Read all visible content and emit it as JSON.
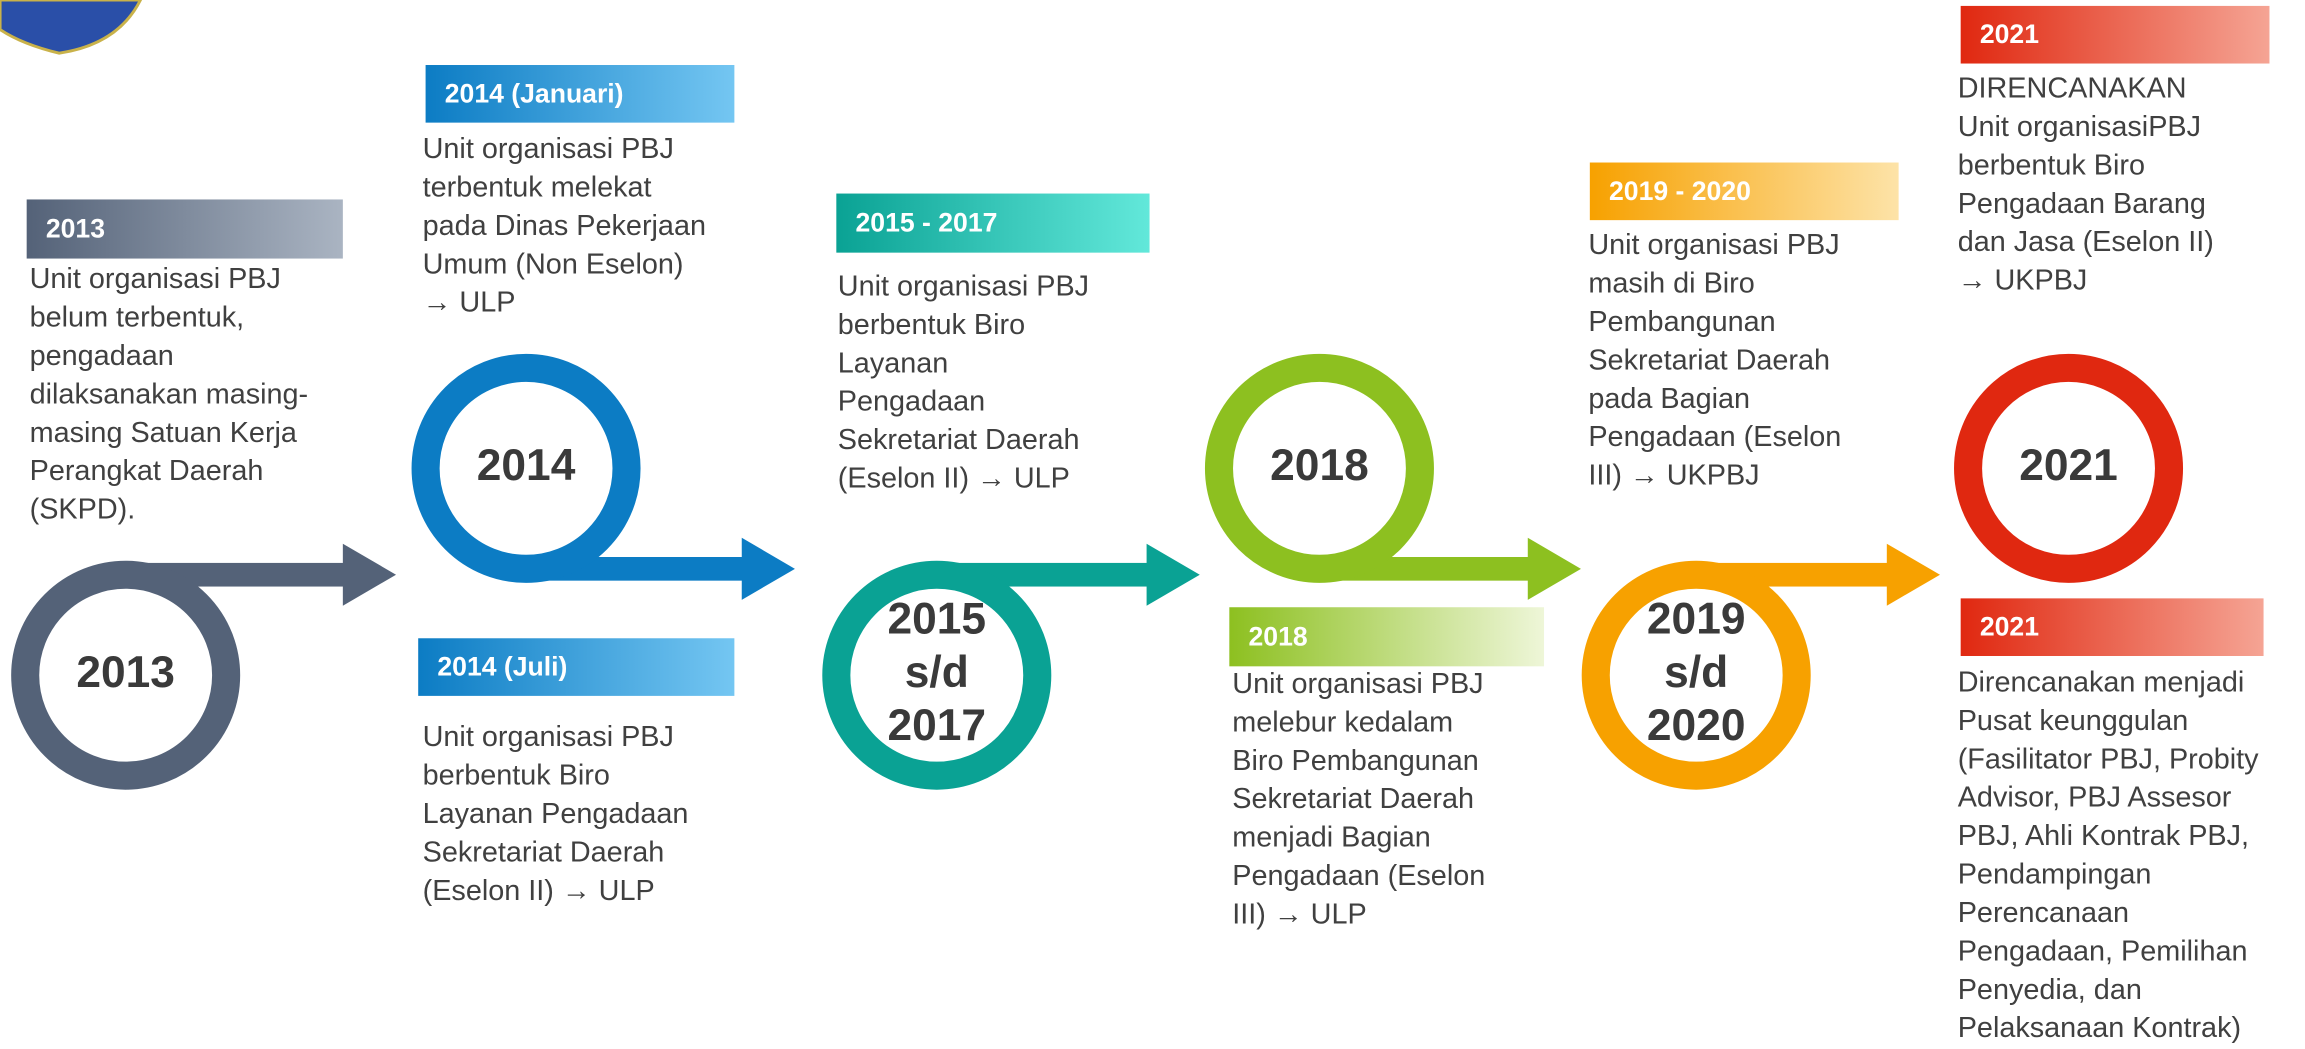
{
  "milestones": [
    {
      "circle_lines": [
        "2013"
      ],
      "color": "#546278",
      "light": "#aab4c2",
      "sections": [
        {
          "header": "2013",
          "lines": [
            "Unit organisasi PBJ",
            "belum terbentuk,",
            "pengadaan",
            "dilaksanakan masing-",
            "masing Satuan Kerja",
            "Perangkat Daerah",
            "(SKPD)."
          ]
        }
      ]
    },
    {
      "circle_lines": [
        "2014"
      ],
      "color": "#0c7cc4",
      "light": "#74c6f2",
      "sections": [
        {
          "header": "2014 (Januari)",
          "lines": [
            "Unit organisasi PBJ",
            "terbentuk melekat",
            "pada Dinas Pekerjaan",
            "Umum (Non Eselon)",
            "→ ULP"
          ]
        },
        {
          "header": "2014 (Juli)",
          "lines": [
            "Unit organisasi PBJ",
            "berbentuk Biro",
            "Layanan Pengadaan",
            "Sekretariat Daerah",
            "(Eselon II) → ULP"
          ]
        }
      ]
    },
    {
      "circle_lines": [
        "2015",
        "s/d",
        "2017"
      ],
      "color": "#0aa294",
      "light": "#62e8da",
      "sections": [
        {
          "header": "2015 - 2017",
          "lines": [
            "Unit organisasi PBJ",
            "berbentuk Biro",
            "Layanan",
            "Pengadaan",
            "Sekretariat Daerah",
            "(Eselon II) → ULP"
          ]
        }
      ]
    },
    {
      "circle_lines": [
        "2018"
      ],
      "color": "#8dc020",
      "light": "#eef6d8",
      "sections": [
        {
          "header": "2018",
          "lines": [
            "Unit organisasi PBJ",
            "melebur kedalam",
            "Biro Pembangunan",
            "Sekretariat Daerah",
            "menjadi Bagian",
            "Pengadaan (Eselon",
            "III) → ULP"
          ]
        }
      ]
    },
    {
      "circle_lines": [
        "2019",
        "s/d",
        "2020"
      ],
      "color": "#f7a100",
      "light": "#fde3a8",
      "sections": [
        {
          "header": "2019 - 2020",
          "lines": [
            "Unit organisasi PBJ",
            "masih di Biro",
            "Pembangunan",
            "Sekretariat Daerah",
            "pada Bagian",
            "Pengadaan (Eselon",
            "III) → UKPBJ"
          ]
        }
      ]
    },
    {
      "circle_lines": [
        "2021"
      ],
      "color": "#e02810",
      "light": "#f5a494",
      "sections": [
        {
          "header": "2021",
          "lines": [
            "DIRENCANAKAN",
            "Unit organisasiPBJ",
            "berbentuk Biro",
            "Pengadaan Barang",
            "dan Jasa (Eselon II)",
            "→ UKPBJ"
          ]
        },
        {
          "header": "2021",
          "lines": [
            "Direncanakan menjadi",
            "Pusat keunggulan",
            "(Fasilitator PBJ, Probity",
            "Advisor, PBJ Assesor",
            "PBJ, Ahli Kontrak PBJ,",
            "Pendampingan",
            "Perencanaan",
            "Pengadaan, Pemilihan",
            "Penyedia, dan",
            "Pelaksanaan Kontrak)"
          ]
        }
      ]
    }
  ]
}
